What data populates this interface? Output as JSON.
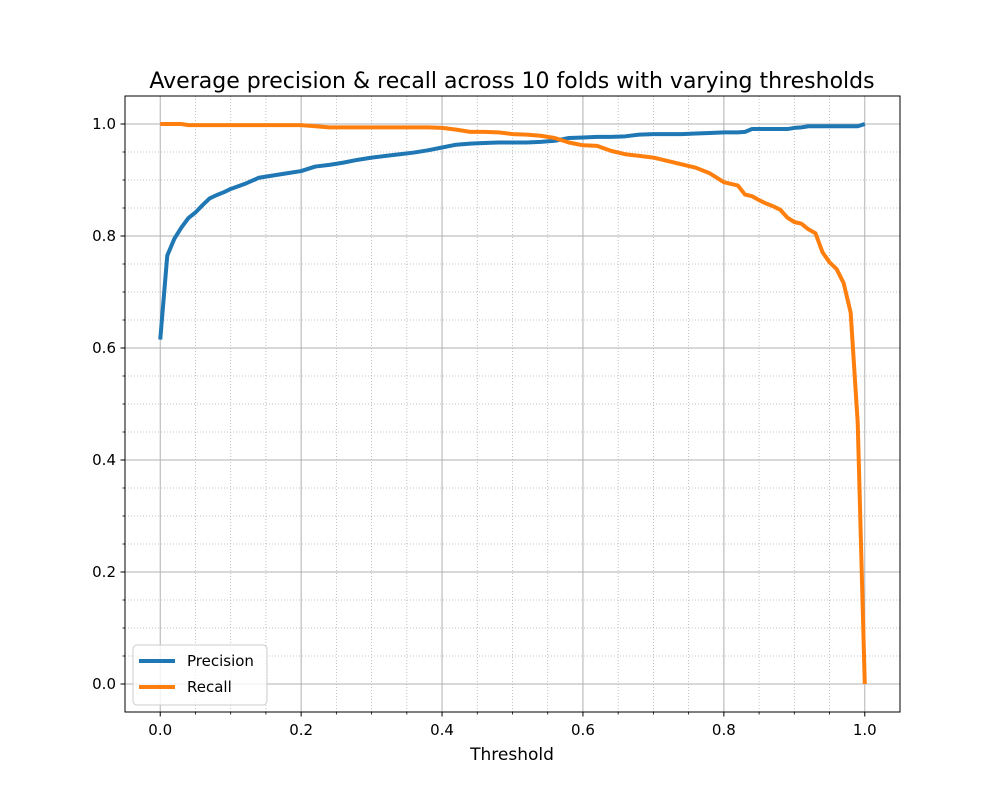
{
  "chart_data": {
    "type": "line",
    "title": "Average precision & recall across 10 folds with varying thresholds",
    "xlabel": "Threshold",
    "ylabel": "",
    "xlim": [
      -0.05,
      1.05
    ],
    "ylim": [
      -0.05,
      1.05
    ],
    "xticks": [
      "0.0",
      "0.2",
      "0.4",
      "0.6",
      "0.8",
      "1.0"
    ],
    "yticks": [
      "0.0",
      "0.2",
      "0.4",
      "0.6",
      "0.8",
      "1.0"
    ],
    "grid": "major solid, minor dotted",
    "legend_position": "lower-left",
    "x": [
      0.0,
      0.01,
      0.02,
      0.03,
      0.04,
      0.05,
      0.06,
      0.07,
      0.08,
      0.09,
      0.1,
      0.12,
      0.14,
      0.16,
      0.18,
      0.2,
      0.22,
      0.24,
      0.26,
      0.28,
      0.3,
      0.32,
      0.34,
      0.36,
      0.38,
      0.4,
      0.42,
      0.44,
      0.46,
      0.48,
      0.5,
      0.52,
      0.54,
      0.56,
      0.58,
      0.6,
      0.62,
      0.64,
      0.66,
      0.68,
      0.7,
      0.72,
      0.74,
      0.76,
      0.78,
      0.8,
      0.82,
      0.83,
      0.84,
      0.85,
      0.86,
      0.87,
      0.88,
      0.89,
      0.9,
      0.91,
      0.92,
      0.93,
      0.94,
      0.95,
      0.96,
      0.97,
      0.98,
      0.99,
      1.0
    ],
    "series": [
      {
        "name": "Precision",
        "color": "#1f77b4",
        "values": [
          0.615,
          0.765,
          0.795,
          0.815,
          0.832,
          0.842,
          0.855,
          0.867,
          0.873,
          0.878,
          0.884,
          0.893,
          0.904,
          0.908,
          0.912,
          0.916,
          0.924,
          0.927,
          0.931,
          0.936,
          0.94,
          0.943,
          0.946,
          0.949,
          0.953,
          0.958,
          0.963,
          0.965,
          0.966,
          0.967,
          0.967,
          0.967,
          0.968,
          0.97,
          0.975,
          0.976,
          0.977,
          0.977,
          0.978,
          0.981,
          0.982,
          0.982,
          0.982,
          0.983,
          0.984,
          0.985,
          0.985,
          0.986,
          0.991,
          0.991,
          0.991,
          0.991,
          0.991,
          0.991,
          0.993,
          0.994,
          0.996,
          0.996,
          0.996,
          0.996,
          0.996,
          0.996,
          0.996,
          0.996,
          1.0
        ]
      },
      {
        "name": "Recall",
        "color": "#ff7f0e",
        "values": [
          1.0,
          1.0,
          1.0,
          1.0,
          0.998,
          0.998,
          0.998,
          0.998,
          0.998,
          0.998,
          0.998,
          0.998,
          0.998,
          0.998,
          0.998,
          0.998,
          0.996,
          0.994,
          0.994,
          0.994,
          0.994,
          0.994,
          0.994,
          0.994,
          0.994,
          0.993,
          0.99,
          0.986,
          0.986,
          0.985,
          0.982,
          0.981,
          0.979,
          0.975,
          0.967,
          0.962,
          0.961,
          0.952,
          0.946,
          0.943,
          0.94,
          0.934,
          0.928,
          0.922,
          0.912,
          0.896,
          0.89,
          0.874,
          0.871,
          0.864,
          0.858,
          0.853,
          0.847,
          0.833,
          0.825,
          0.822,
          0.812,
          0.805,
          0.771,
          0.753,
          0.741,
          0.716,
          0.663,
          0.466,
          0.0
        ]
      }
    ]
  }
}
